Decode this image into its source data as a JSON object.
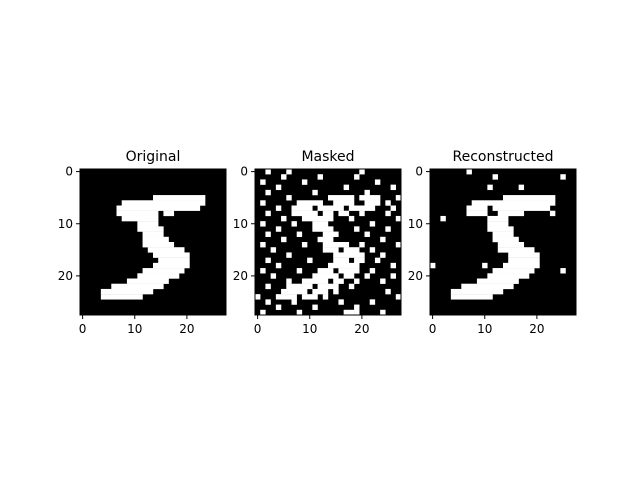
{
  "figure": {
    "background": "#ffffff"
  },
  "chart_data": [
    {
      "type": "heatmap",
      "title": "Original",
      "xlabel": "",
      "ylabel": "",
      "xlim": [
        -0.5,
        27.5
      ],
      "ylim": [
        27.5,
        -0.5
      ],
      "x_ticks": [
        0,
        10,
        20
      ],
      "y_ticks": [
        0,
        10,
        20
      ],
      "colormap": "gray",
      "off_color": "#000000",
      "on_color": "#ffffff",
      "grid": false,
      "white_runs": [
        [
          5,
          14,
          23
        ],
        [
          6,
          8,
          23
        ],
        [
          7,
          7,
          22
        ],
        [
          8,
          7,
          14
        ],
        [
          8,
          16,
          17
        ],
        [
          9,
          8,
          14
        ],
        [
          10,
          11,
          14
        ],
        [
          11,
          11,
          15
        ],
        [
          12,
          12,
          15
        ],
        [
          13,
          12,
          16
        ],
        [
          14,
          12,
          17
        ],
        [
          15,
          13,
          19
        ],
        [
          16,
          14,
          20
        ],
        [
          17,
          15,
          20
        ],
        [
          18,
          14,
          20
        ],
        [
          19,
          12,
          19
        ],
        [
          20,
          11,
          18
        ],
        [
          21,
          9,
          16
        ],
        [
          22,
          6,
          15
        ],
        [
          23,
          4,
          13
        ],
        [
          24,
          4,
          11
        ]
      ]
    },
    {
      "type": "heatmap",
      "title": "Masked",
      "xlabel": "",
      "ylabel": "",
      "xlim": [
        -0.5,
        27.5
      ],
      "ylim": [
        27.5,
        -0.5
      ],
      "x_ticks": [
        0,
        10,
        20
      ],
      "y_ticks": [
        0,
        10,
        20
      ],
      "colormap": "gray",
      "off_color": "#000000",
      "on_color": "#ffffff",
      "grid": false,
      "white_runs": [
        [
          5,
          14,
          18
        ],
        [
          5,
          20,
          23
        ],
        [
          6,
          8,
          12
        ],
        [
          6,
          15,
          18
        ],
        [
          6,
          21,
          23
        ],
        [
          7,
          7,
          10
        ],
        [
          7,
          12,
          16
        ],
        [
          7,
          18,
          22
        ],
        [
          8,
          7,
          11
        ],
        [
          8,
          13,
          14
        ],
        [
          8,
          16,
          17
        ],
        [
          9,
          9,
          14
        ],
        [
          10,
          11,
          13
        ],
        [
          11,
          11,
          14
        ],
        [
          12,
          13,
          15
        ],
        [
          13,
          12,
          14
        ],
        [
          14,
          13,
          17
        ],
        [
          15,
          13,
          15
        ],
        [
          15,
          17,
          19
        ],
        [
          16,
          15,
          20
        ],
        [
          17,
          15,
          17
        ],
        [
          17,
          19,
          20
        ],
        [
          18,
          14,
          19
        ],
        [
          19,
          12,
          14
        ],
        [
          19,
          16,
          19
        ],
        [
          20,
          11,
          15
        ],
        [
          20,
          17,
          18
        ],
        [
          21,
          9,
          13
        ],
        [
          21,
          15,
          16
        ],
        [
          22,
          6,
          10
        ],
        [
          22,
          12,
          15
        ],
        [
          23,
          5,
          9
        ],
        [
          23,
          11,
          13
        ],
        [
          24,
          4,
          7
        ],
        [
          24,
          9,
          11
        ]
      ],
      "noise_pixels": [
        [
          0,
          2
        ],
        [
          0,
          6
        ],
        [
          0,
          20
        ],
        [
          1,
          5
        ],
        [
          1,
          12
        ],
        [
          1,
          19
        ],
        [
          2,
          1
        ],
        [
          2,
          9
        ],
        [
          2,
          23
        ],
        [
          3,
          4
        ],
        [
          3,
          17
        ],
        [
          3,
          26
        ],
        [
          4,
          2
        ],
        [
          4,
          11
        ],
        [
          4,
          21
        ],
        [
          5,
          6
        ],
        [
          5,
          27
        ],
        [
          6,
          1
        ],
        [
          6,
          25
        ],
        [
          7,
          4
        ],
        [
          7,
          26
        ],
        [
          8,
          2
        ],
        [
          8,
          20
        ],
        [
          8,
          25
        ],
        [
          9,
          5
        ],
        [
          9,
          18
        ],
        [
          9,
          27
        ],
        [
          10,
          1
        ],
        [
          10,
          7
        ],
        [
          10,
          22
        ],
        [
          11,
          4
        ],
        [
          11,
          19
        ],
        [
          11,
          25
        ],
        [
          12,
          2
        ],
        [
          12,
          8
        ],
        [
          12,
          21
        ],
        [
          13,
          5
        ],
        [
          13,
          24
        ],
        [
          14,
          1
        ],
        [
          14,
          9
        ],
        [
          14,
          20
        ],
        [
          14,
          27
        ],
        [
          15,
          3
        ],
        [
          15,
          22
        ],
        [
          16,
          6
        ],
        [
          16,
          24
        ],
        [
          17,
          2
        ],
        [
          17,
          10
        ],
        [
          17,
          23
        ],
        [
          18,
          4
        ],
        [
          18,
          26
        ],
        [
          19,
          1
        ],
        [
          19,
          8
        ],
        [
          19,
          22
        ],
        [
          20,
          3
        ],
        [
          20,
          21
        ],
        [
          20,
          26
        ],
        [
          21,
          6
        ],
        [
          21,
          19
        ],
        [
          21,
          24
        ],
        [
          22,
          2
        ],
        [
          22,
          18
        ],
        [
          23,
          15
        ],
        [
          23,
          25
        ],
        [
          24,
          0
        ],
        [
          24,
          13
        ],
        [
          24,
          27
        ],
        [
          25,
          2
        ],
        [
          25,
          7
        ],
        [
          25,
          16
        ],
        [
          25,
          22
        ],
        [
          26,
          4
        ],
        [
          26,
          11
        ],
        [
          26,
          19
        ],
        [
          27,
          1
        ],
        [
          27,
          8
        ],
        [
          27,
          17
        ],
        [
          27,
          18
        ],
        [
          27,
          19
        ],
        [
          27,
          24
        ]
      ]
    },
    {
      "type": "heatmap",
      "title": "Reconstructed",
      "xlabel": "",
      "ylabel": "",
      "xlim": [
        -0.5,
        27.5
      ],
      "ylim": [
        27.5,
        -0.5
      ],
      "x_ticks": [
        0,
        10,
        20
      ],
      "y_ticks": [
        0,
        10,
        20
      ],
      "colormap": "gray",
      "off_color": "#000000",
      "on_color": "#ffffff",
      "grid": false,
      "white_runs": [
        [
          5,
          14,
          23
        ],
        [
          6,
          8,
          23
        ],
        [
          7,
          7,
          10
        ],
        [
          7,
          12,
          22
        ],
        [
          8,
          7,
          10
        ],
        [
          8,
          13,
          17
        ],
        [
          9,
          11,
          14
        ],
        [
          10,
          11,
          14
        ],
        [
          11,
          11,
          15
        ],
        [
          12,
          12,
          15
        ],
        [
          13,
          12,
          16
        ],
        [
          14,
          13,
          17
        ],
        [
          15,
          13,
          19
        ],
        [
          16,
          15,
          20
        ],
        [
          17,
          15,
          20
        ],
        [
          18,
          14,
          20
        ],
        [
          19,
          12,
          19
        ],
        [
          20,
          11,
          18
        ],
        [
          21,
          9,
          16
        ],
        [
          22,
          6,
          15
        ],
        [
          23,
          4,
          13
        ],
        [
          24,
          4,
          11
        ]
      ],
      "noise_pixels": [
        [
          0,
          7
        ],
        [
          1,
          12
        ],
        [
          1,
          25
        ],
        [
          3,
          11
        ],
        [
          3,
          17
        ],
        [
          6,
          22
        ],
        [
          8,
          23
        ],
        [
          9,
          2
        ],
        [
          18,
          0
        ],
        [
          18,
          10
        ],
        [
          19,
          25
        ]
      ]
    }
  ]
}
